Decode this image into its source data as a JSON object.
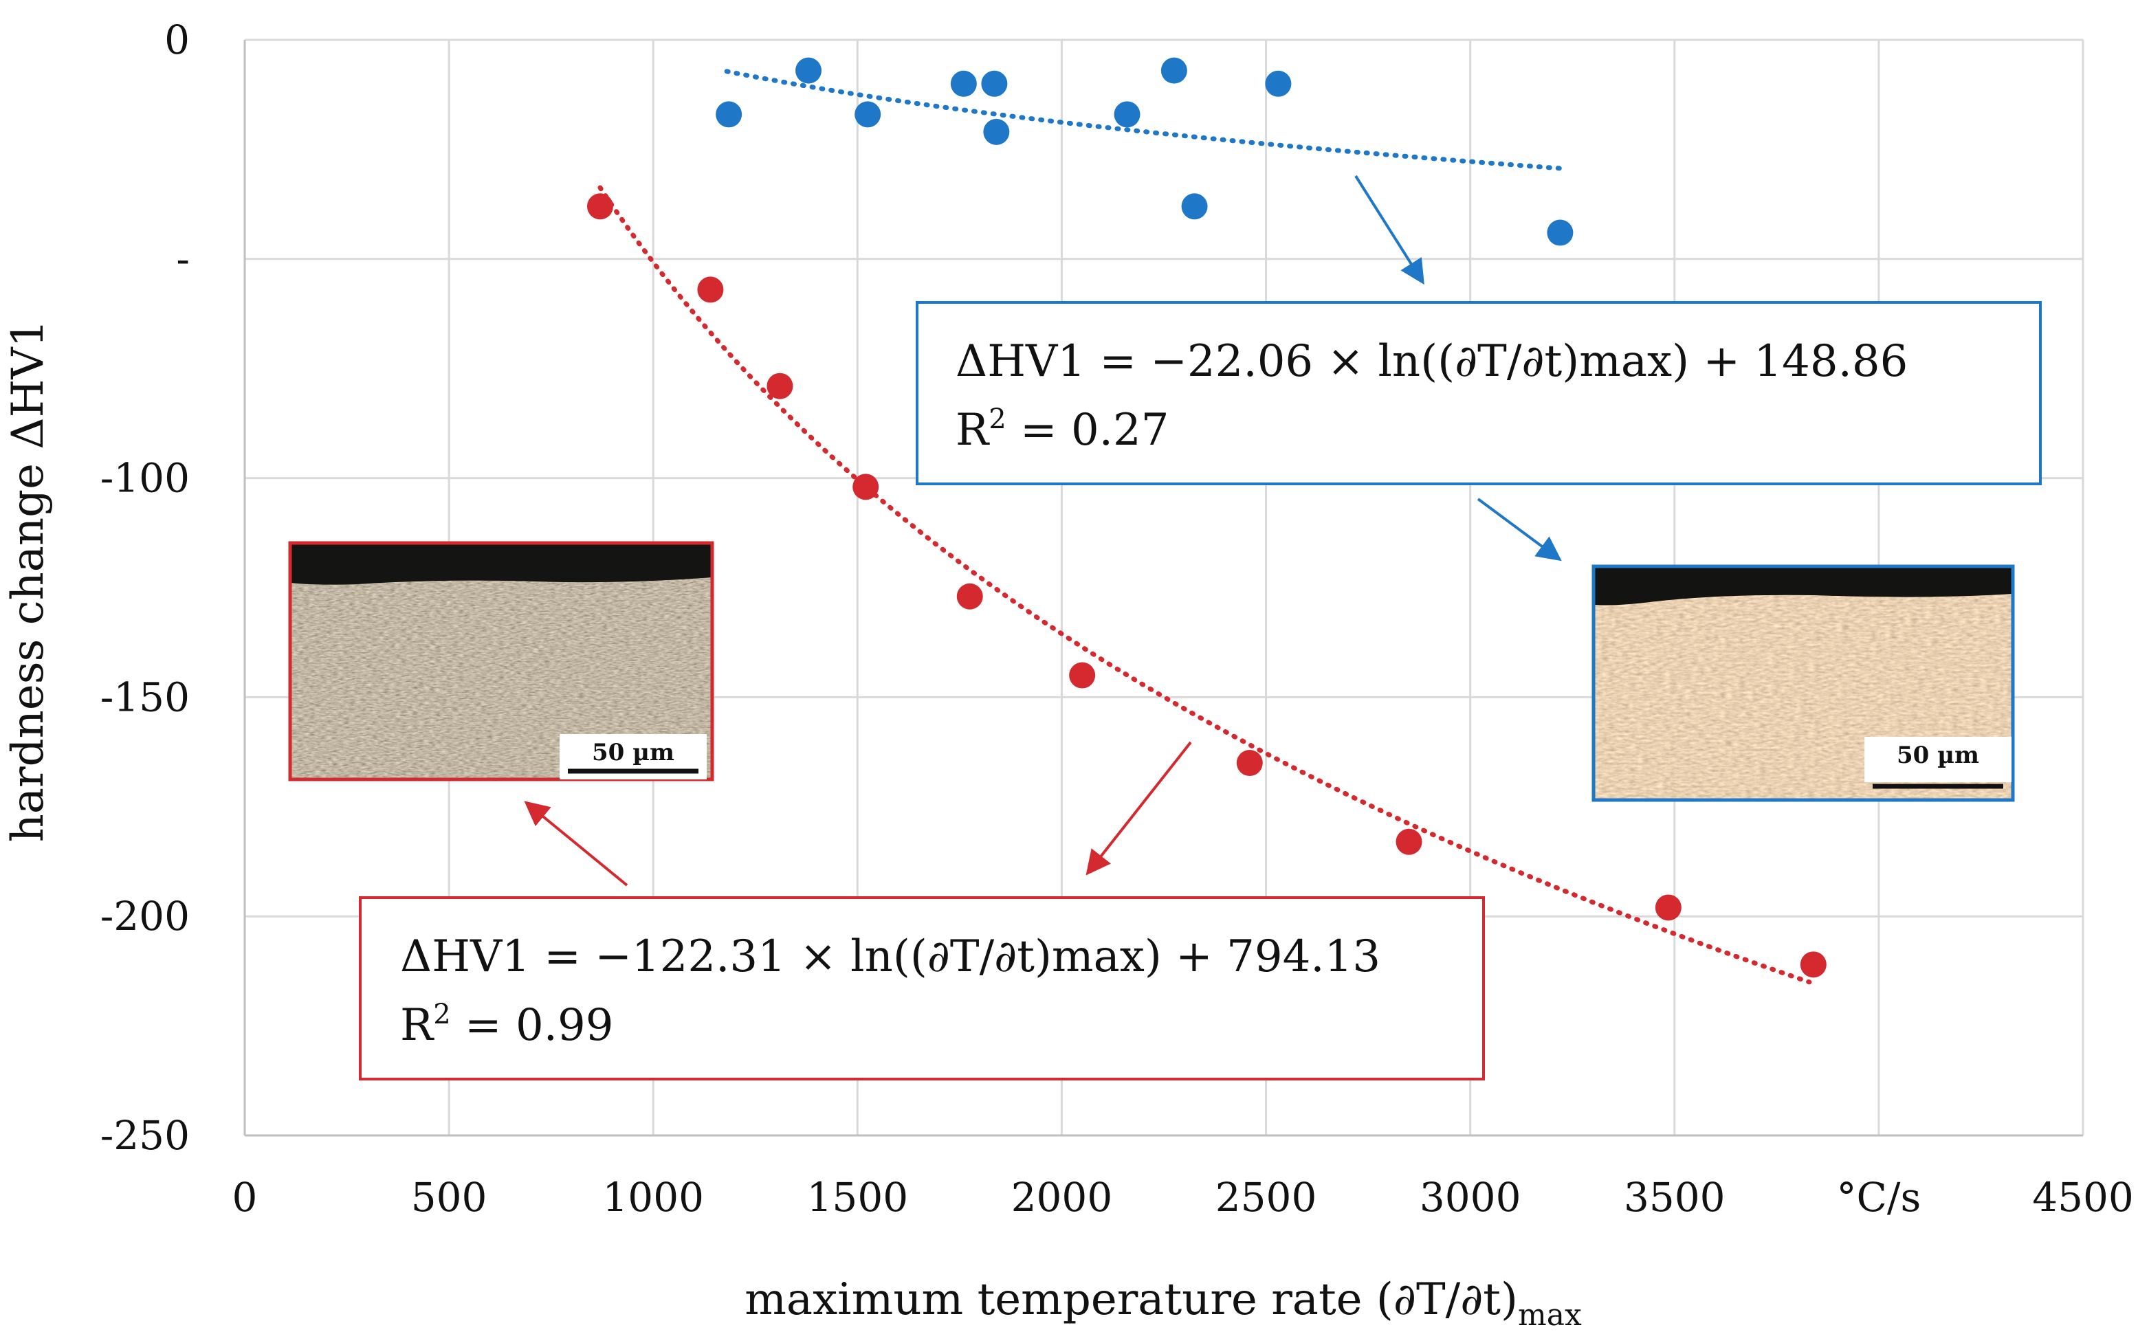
{
  "chart_data": {
    "type": "scatter",
    "title": "",
    "xlabel": "maximum temperature rate (∂T/∂t)",
    "xlabel_subscript": "max",
    "ylabel": "hardness change ΔHV1",
    "xlim": [
      0,
      4500
    ],
    "ylim": [
      -250,
      0
    ],
    "x_ticks": [
      0,
      500,
      1000,
      1500,
      2000,
      2500,
      3000,
      3500,
      4000,
      4500
    ],
    "x_tick_labels": [
      "0",
      "500",
      "1000",
      "1500",
      "2000",
      "2500",
      "3000",
      "3500",
      "°C/s",
      "4500"
    ],
    "y_ticks": [
      0,
      -50,
      -100,
      -150,
      -200,
      -250
    ],
    "y_tick_labels": [
      "0",
      "-",
      "-100",
      "-150",
      "-200",
      "-250"
    ],
    "grid": true,
    "series": [
      {
        "name": "blue",
        "color": "#1f77c8",
        "x": [
          1185,
          1380,
          1525,
          1760,
          1835,
          1840,
          2160,
          2275,
          2325,
          2530,
          3220
        ],
        "y": [
          -17,
          -7,
          -17,
          -10,
          -10,
          -21,
          -17,
          -7,
          -38,
          -10,
          -44
        ],
        "trendline": {
          "type": "logarithmic",
          "a": -22.06,
          "b": 148.86,
          "x_range": [
            1180,
            3230
          ],
          "equation": "ΔHV1 = −22.06 × ln((∂T/∂t)max) + 148.86",
          "r2_label": "R",
          "r2_sup": "2",
          "r2_value": " = 0.27"
        }
      },
      {
        "name": "red",
        "color": "#d42a2f",
        "x": [
          870,
          1140,
          1310,
          1520,
          1775,
          2050,
          2460,
          2850,
          3485,
          3840
        ],
        "y": [
          -38,
          -57,
          -79,
          -102,
          -127,
          -145,
          -165,
          -183,
          -198,
          -211
        ],
        "trendline": {
          "type": "logarithmic",
          "a": -122.31,
          "b": 794.13,
          "x_range": [
            870,
            3830
          ],
          "equation": "ΔHV1 = −122.31 × ln((∂T/∂t)max) + 794.13",
          "r2_label": "R",
          "r2_sup": "2",
          "r2_value": " = 0.99"
        }
      }
    ],
    "insets": [
      {
        "name": "red-micrograph",
        "scale_bar_label": "50 µm",
        "border_color": "#d42a2f"
      },
      {
        "name": "blue-micrograph",
        "scale_bar_label": "50 µm",
        "border_color": "#1f77c8"
      }
    ]
  }
}
